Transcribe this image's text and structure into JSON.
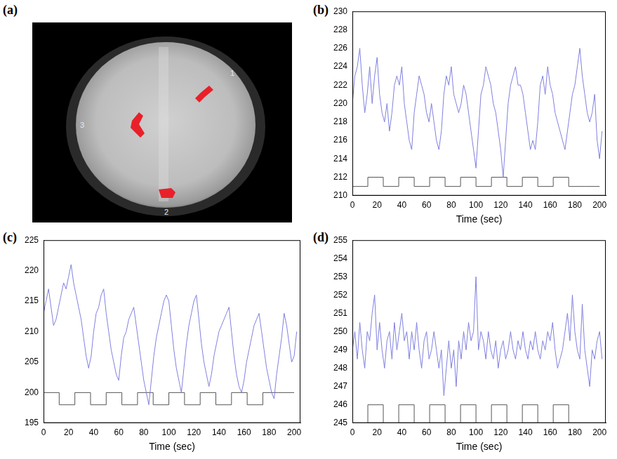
{
  "image": {
    "panel": "(a)",
    "labels": [
      "1",
      "2",
      "3"
    ]
  },
  "chart_data": [
    {
      "panel": "(b)",
      "type": "line",
      "x_label": "Time (sec)",
      "grid": false,
      "xlim": [
        0,
        205
      ],
      "xticks": [
        0,
        20,
        40,
        60,
        80,
        100,
        120,
        140,
        160,
        180,
        200
      ],
      "ylim": [
        210,
        230
      ],
      "yticks": [
        210,
        212,
        214,
        216,
        218,
        220,
        222,
        224,
        226,
        228,
        230
      ],
      "x": [
        0,
        2,
        4,
        6,
        8,
        10,
        12,
        14,
        16,
        18,
        20,
        22,
        24,
        26,
        28,
        30,
        32,
        34,
        36,
        38,
        40,
        42,
        44,
        46,
        48,
        50,
        52,
        54,
        56,
        58,
        60,
        62,
        64,
        66,
        68,
        70,
        72,
        74,
        76,
        78,
        80,
        82,
        84,
        86,
        88,
        90,
        92,
        94,
        96,
        98,
        100,
        102,
        104,
        106,
        108,
        110,
        112,
        114,
        116,
        118,
        120,
        122,
        124,
        126,
        128,
        130,
        132,
        134,
        136,
        138,
        140,
        142,
        144,
        146,
        148,
        150,
        152,
        154,
        156,
        158,
        160,
        162,
        164,
        166,
        168,
        170,
        172,
        174,
        176,
        178,
        180,
        182,
        184,
        186,
        188,
        190,
        192,
        194,
        196,
        198,
        200,
        202
      ],
      "series": [
        {
          "color": "#8080e0",
          "line_style": "solid",
          "values": [
            220,
            223,
            224,
            226,
            222,
            219,
            221,
            224,
            220,
            223,
            225,
            221,
            219,
            218,
            220,
            217,
            219,
            222,
            223,
            222,
            224,
            220,
            218,
            216,
            215,
            219,
            221,
            223,
            222,
            221,
            219,
            218,
            220,
            218,
            216,
            215,
            217,
            221,
            223,
            222,
            224,
            221,
            220,
            219,
            220,
            222,
            221,
            219,
            217,
            215,
            213,
            217,
            221,
            222,
            224,
            223,
            222,
            220,
            219,
            217,
            215,
            212,
            216,
            220,
            222,
            223,
            224,
            222,
            222,
            221,
            219,
            217,
            215,
            216,
            215,
            218,
            222,
            223,
            221,
            224,
            222,
            221,
            219,
            218,
            217,
            216,
            215,
            217,
            219,
            221,
            222,
            224,
            226,
            223,
            221,
            219,
            218,
            219,
            221,
            216,
            214,
            217
          ]
        },
        {
          "color": "#555555",
          "line_style": "step",
          "x": [
            0,
            12.5,
            25,
            37.5,
            50,
            62.5,
            75,
            87.5,
            100,
            112.5,
            125,
            137.5,
            150,
            162.5,
            175,
            187.5,
            200
          ],
          "values": [
            212,
            211,
            212,
            211,
            212,
            211,
            212,
            211,
            212,
            211,
            212,
            211,
            212,
            211,
            212,
            211,
            211
          ]
        }
      ]
    },
    {
      "panel": "(c)",
      "type": "line",
      "x_label": "Time (sec)",
      "grid": false,
      "xlim": [
        0,
        205
      ],
      "xticks": [
        0,
        20,
        40,
        60,
        80,
        100,
        120,
        140,
        160,
        180,
        200
      ],
      "ylim": [
        195,
        225
      ],
      "yticks": [
        195,
        200,
        205,
        210,
        215,
        220,
        225
      ],
      "x": [
        0,
        2,
        4,
        6,
        8,
        10,
        12,
        14,
        16,
        18,
        20,
        22,
        24,
        26,
        28,
        30,
        32,
        34,
        36,
        38,
        40,
        42,
        44,
        46,
        48,
        50,
        52,
        54,
        56,
        58,
        60,
        62,
        64,
        66,
        68,
        70,
        72,
        74,
        76,
        78,
        80,
        82,
        84,
        86,
        88,
        90,
        92,
        94,
        96,
        98,
        100,
        102,
        104,
        106,
        108,
        110,
        112,
        114,
        116,
        118,
        120,
        122,
        124,
        126,
        128,
        130,
        132,
        134,
        136,
        138,
        140,
        142,
        144,
        146,
        148,
        150,
        152,
        154,
        156,
        158,
        160,
        162,
        164,
        166,
        168,
        170,
        172,
        174,
        176,
        178,
        180,
        182,
        184,
        186,
        188,
        190,
        192,
        194,
        196,
        198,
        200,
        202
      ],
      "series": [
        {
          "color": "#8080e0",
          "line_style": "solid",
          "values": [
            213,
            215,
            217,
            214,
            211,
            212,
            214,
            216,
            218,
            217,
            219,
            221,
            218,
            216,
            214,
            212,
            209,
            206,
            204,
            206,
            210,
            213,
            214,
            216,
            217,
            213,
            210,
            207,
            205,
            203,
            202,
            206,
            209,
            210,
            212,
            213,
            214,
            211,
            208,
            205,
            202,
            200,
            198,
            202,
            206,
            209,
            211,
            213,
            215,
            216,
            215,
            211,
            207,
            204,
            202,
            200,
            204,
            208,
            211,
            213,
            215,
            216,
            212,
            208,
            205,
            203,
            201,
            203,
            206,
            208,
            210,
            211,
            212,
            213,
            214,
            210,
            206,
            203,
            201,
            200,
            202,
            205,
            207,
            209,
            211,
            212,
            213,
            210,
            207,
            204,
            202,
            200,
            199,
            203,
            206,
            209,
            213,
            211,
            208,
            205,
            206,
            210
          ]
        },
        {
          "color": "#555555",
          "line_style": "step",
          "x": [
            0,
            12.5,
            25,
            37.5,
            50,
            62.5,
            75,
            87.5,
            100,
            112.5,
            125,
            137.5,
            150,
            162.5,
            175,
            187.5,
            200
          ],
          "values": [
            198,
            200,
            198,
            200,
            198,
            200,
            198,
            200,
            198,
            200,
            198,
            200,
            198,
            200,
            198,
            200,
            200
          ]
        }
      ]
    },
    {
      "panel": "(d)",
      "type": "line",
      "x_label": "Time (sec)",
      "grid": false,
      "xlim": [
        0,
        205
      ],
      "xticks": [
        0,
        20,
        40,
        60,
        80,
        100,
        120,
        140,
        160,
        180,
        200
      ],
      "ylim": [
        245,
        255
      ],
      "yticks": [
        245,
        246,
        247,
        248,
        249,
        250,
        251,
        252,
        253,
        254,
        255
      ],
      "x": [
        0,
        2,
        4,
        6,
        8,
        10,
        12,
        14,
        16,
        18,
        20,
        22,
        24,
        26,
        28,
        30,
        32,
        34,
        36,
        38,
        40,
        42,
        44,
        46,
        48,
        50,
        52,
        54,
        56,
        58,
        60,
        62,
        64,
        66,
        68,
        70,
        72,
        74,
        76,
        78,
        80,
        82,
        84,
        86,
        88,
        90,
        92,
        94,
        96,
        98,
        100,
        102,
        104,
        106,
        108,
        110,
        112,
        114,
        116,
        118,
        120,
        122,
        124,
        126,
        128,
        130,
        132,
        134,
        136,
        138,
        140,
        142,
        144,
        146,
        148,
        150,
        152,
        154,
        156,
        158,
        160,
        162,
        164,
        166,
        168,
        170,
        172,
        174,
        176,
        178,
        180,
        182,
        184,
        186,
        188,
        190,
        192,
        194,
        196,
        198,
        200,
        202
      ],
      "series": [
        {
          "color": "#8080e0",
          "line_style": "solid",
          "values": [
            249,
            250,
            248.5,
            250.5,
            249,
            248,
            250,
            249.5,
            251,
            252,
            249,
            250.5,
            249,
            248,
            249.5,
            250,
            248.5,
            250.5,
            249,
            250,
            251,
            249.5,
            250,
            248.5,
            250,
            249,
            250.5,
            249,
            248,
            249.5,
            250,
            248.5,
            249,
            250,
            249,
            248,
            249,
            246.5,
            248,
            249.5,
            248,
            249,
            247,
            249.5,
            248.5,
            250,
            249,
            250.5,
            249.5,
            250,
            253,
            249,
            250,
            249.5,
            248.5,
            250,
            249,
            248.5,
            249.5,
            248,
            249,
            249.5,
            248.5,
            249,
            250,
            249,
            248.5,
            249.5,
            249,
            250,
            249,
            248.5,
            249.5,
            249,
            250,
            249,
            248.5,
            249.5,
            249,
            250,
            249.5,
            250.5,
            249,
            248,
            248.5,
            249,
            250,
            251,
            249.5,
            252,
            250,
            249,
            248.5,
            251.5,
            249,
            248,
            247,
            249,
            248.5,
            249.5,
            250,
            248.5
          ]
        },
        {
          "color": "#555555",
          "line_style": "step",
          "x": [
            0,
            12.5,
            25,
            37.5,
            50,
            62.5,
            75,
            87.5,
            100,
            112.5,
            125,
            137.5,
            150,
            162.5,
            175,
            187.5,
            200
          ],
          "values": [
            246,
            245,
            246,
            245,
            246,
            245,
            246,
            245,
            246,
            245,
            246,
            245,
            246,
            245,
            246,
            245,
            245
          ]
        }
      ]
    }
  ]
}
